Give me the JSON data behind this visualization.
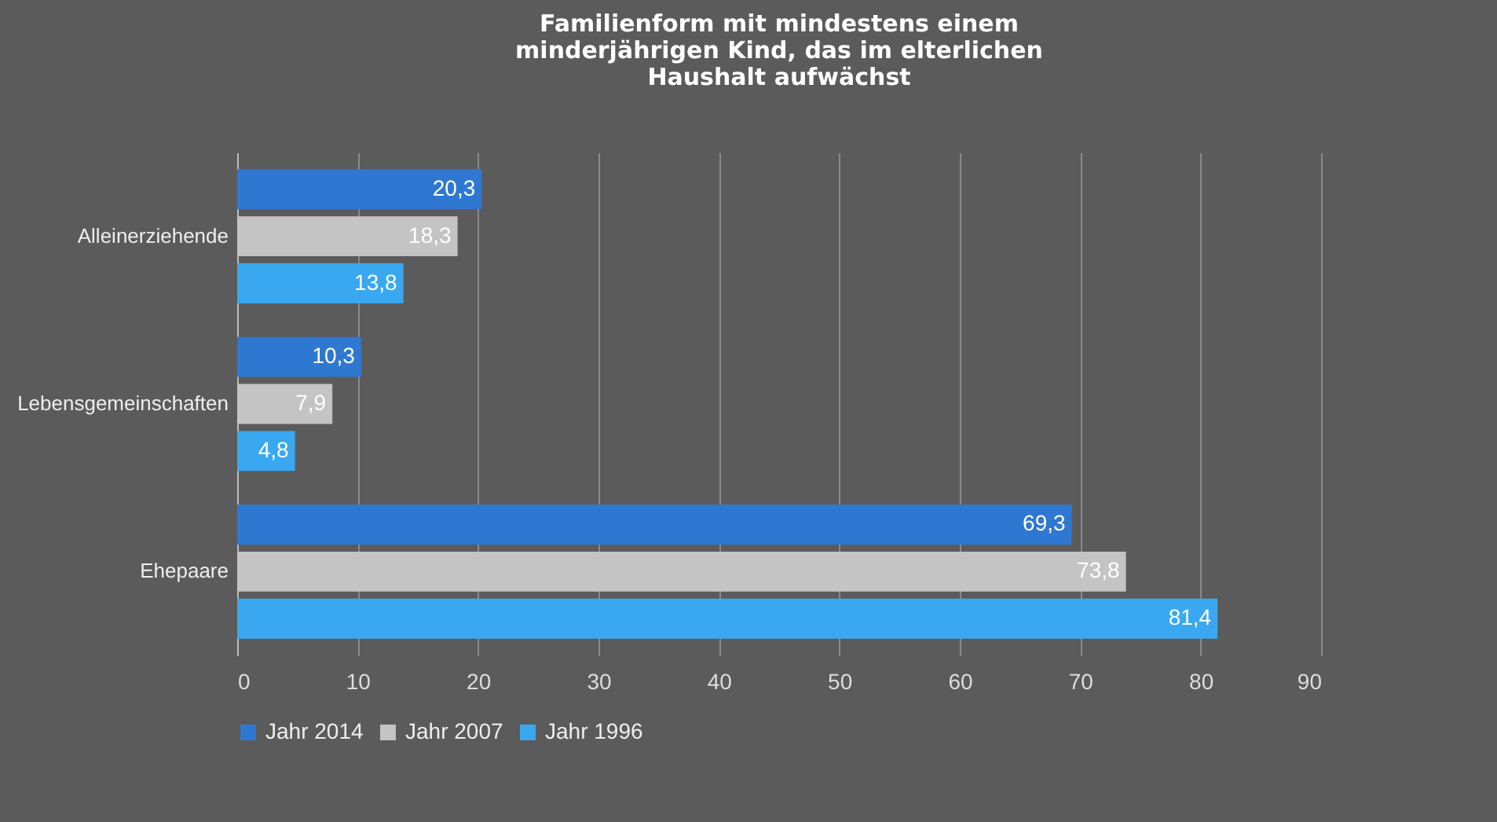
{
  "chart_data": {
    "type": "bar",
    "orientation": "horizontal",
    "title": "Familienform  mit mindestens einem\nminderjährigen  Kind, das im elterlichen\nHaushalt aufwächst",
    "categories": [
      "Alleinerziehende",
      "Lebensgemeinschaften",
      "Ehepaare"
    ],
    "series": [
      {
        "name": "Jahr 2014",
        "color": "#2f78d2",
        "values": [
          20.3,
          10.3,
          69.3
        ],
        "value_labels": [
          "20,3",
          "10,3",
          "69,3"
        ]
      },
      {
        "name": "Jahr 2007",
        "color": "#c4c4c4",
        "values": [
          18.3,
          7.9,
          73.8
        ],
        "value_labels": [
          "18,3",
          "7,9",
          "73,8"
        ]
      },
      {
        "name": "Jahr 1996",
        "color": "#3aa8f0",
        "values": [
          13.8,
          4.8,
          81.4
        ],
        "value_labels": [
          "13,8",
          "4,8",
          "81,4"
        ]
      }
    ],
    "xlim": [
      0,
      90
    ],
    "xticks": [
      0,
      10,
      20,
      30,
      40,
      50,
      60,
      70,
      80,
      90
    ],
    "grid": "x",
    "legend": "bottom"
  }
}
